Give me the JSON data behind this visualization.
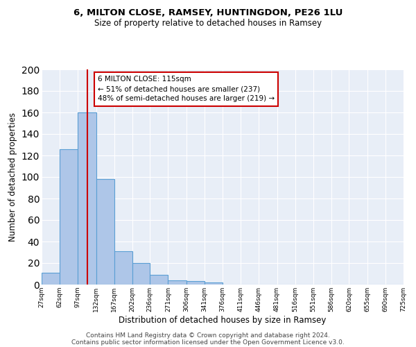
{
  "title": "6, MILTON CLOSE, RAMSEY, HUNTINGDON, PE26 1LU",
  "subtitle": "Size of property relative to detached houses in Ramsey",
  "xlabel": "Distribution of detached houses by size in Ramsey",
  "ylabel": "Number of detached properties",
  "bar_edges": [
    27,
    62,
    97,
    132,
    167,
    202,
    236,
    271,
    306,
    341,
    376,
    411,
    446,
    481,
    516,
    551,
    586,
    620,
    655,
    690,
    725
  ],
  "bar_heights": [
    11,
    126,
    160,
    98,
    31,
    20,
    9,
    4,
    3,
    2,
    0,
    0,
    0,
    0,
    0,
    0,
    0,
    0,
    0,
    0
  ],
  "bar_color": "#aec6e8",
  "bar_edgecolor": "#5a9fd4",
  "red_line_x": 115,
  "annotation_line1": "6 MILTON CLOSE: 115sqm",
  "annotation_line2": "← 51% of detached houses are smaller (237)",
  "annotation_line3": "48% of semi-detached houses are larger (219) →",
  "annotation_box_color": "#ffffff",
  "annotation_box_edgecolor": "#cc0000",
  "ylim": [
    0,
    200
  ],
  "yticks": [
    0,
    20,
    40,
    60,
    80,
    100,
    120,
    140,
    160,
    180,
    200
  ],
  "background_color": "#e8eef7",
  "grid_color": "#ffffff",
  "footer_line1": "Contains HM Land Registry data © Crown copyright and database right 2024.",
  "footer_line2": "Contains public sector information licensed under the Open Government Licence v3.0.",
  "tick_labels": [
    "27sqm",
    "62sqm",
    "97sqm",
    "132sqm",
    "167sqm",
    "202sqm",
    "236sqm",
    "271sqm",
    "306sqm",
    "341sqm",
    "376sqm",
    "411sqm",
    "446sqm",
    "481sqm",
    "516sqm",
    "551sqm",
    "586sqm",
    "620sqm",
    "655sqm",
    "690sqm",
    "725sqm"
  ]
}
